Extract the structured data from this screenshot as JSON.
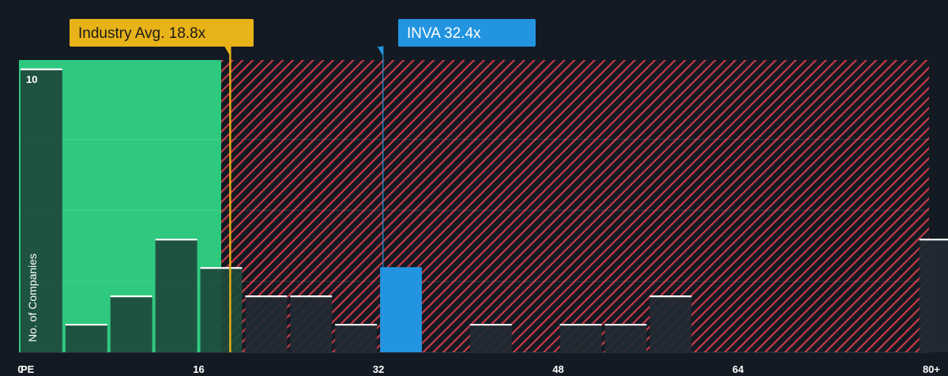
{
  "chart_data": {
    "type": "bar",
    "x_axis_prefix": "PE",
    "x_ticks": [
      "0",
      "16",
      "32",
      "48",
      "64",
      "80+"
    ],
    "y_tick_labels": [
      "10"
    ],
    "ylabel": "No. of Companies",
    "xlim": [
      0,
      81
    ],
    "ylim": [
      0,
      10.3
    ],
    "bin_width": 4,
    "bins": [
      {
        "x": 0,
        "count": 10
      },
      {
        "x": 4,
        "count": 1
      },
      {
        "x": 8,
        "count": 2
      },
      {
        "x": 12,
        "count": 4
      },
      {
        "x": 16,
        "count": 3
      },
      {
        "x": 20,
        "count": 2
      },
      {
        "x": 24,
        "count": 2
      },
      {
        "x": 28,
        "count": 1
      },
      {
        "x": 32,
        "count": 3,
        "highlight": true
      },
      {
        "x": 40,
        "count": 1
      },
      {
        "x": 48,
        "count": 1
      },
      {
        "x": 52,
        "count": 1
      },
      {
        "x": 56,
        "count": 2
      },
      {
        "x": 80,
        "count": 4
      }
    ],
    "industry_avg": {
      "label": "Industry Avg. 18.8x",
      "value": 18.8
    },
    "company": {
      "label": "INVA 32.4x",
      "value": 32.4
    },
    "fair_zone_end": 18.0,
    "colors": {
      "background": "#141a23",
      "fair_zone": "#2ec97f",
      "bar_in_fair": "#1e4a3c",
      "bar_in_over": "#212a33",
      "overvalued_stripe": "#c73a46",
      "industry_callout": "#e8b318",
      "company_callout": "#2394e0",
      "bar_top": "#ffffff"
    }
  }
}
